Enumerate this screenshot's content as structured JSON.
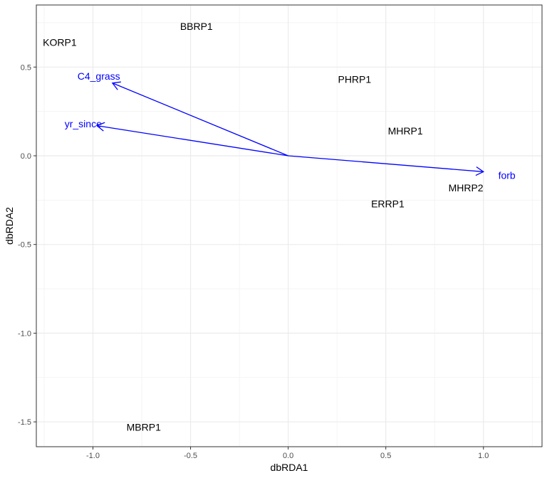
{
  "chart_data": {
    "type": "scatter",
    "title": "",
    "xlabel": "dbRDA1",
    "ylabel": "dbRDA2",
    "xlim": [
      -1.29,
      1.3
    ],
    "ylim": [
      -1.64,
      0.85
    ],
    "x_ticks": [
      -1.0,
      -0.5,
      0.0,
      0.5,
      1.0
    ],
    "x_tick_labels": [
      "-1.0",
      "-0.5",
      "0.0",
      "0.5",
      "1.0"
    ],
    "y_ticks": [
      0.5,
      0.0,
      -0.5,
      -1.0,
      -1.5
    ],
    "y_tick_labels": [
      "0.5",
      "0.0",
      "-0.5",
      "-1.0",
      "-1.5"
    ],
    "grid": true,
    "sites": [
      {
        "label": "BBRP1",
        "x": -0.47,
        "y": 0.73
      },
      {
        "label": "KORP1",
        "x": -1.17,
        "y": 0.64
      },
      {
        "label": "PHRP1",
        "x": 0.34,
        "y": 0.43
      },
      {
        "label": "MHRP1",
        "x": 0.6,
        "y": 0.14
      },
      {
        "label": "MHRP2",
        "x": 0.91,
        "y": -0.18
      },
      {
        "label": "ERRP1",
        "x": 0.51,
        "y": -0.27
      },
      {
        "label": "MBRP1",
        "x": -0.74,
        "y": -1.53
      }
    ],
    "arrows": [
      {
        "label": "C4_grass",
        "x": -0.9,
        "y": 0.41,
        "label_x": -0.97,
        "label_y": 0.45
      },
      {
        "label": "yr_since",
        "x": -0.98,
        "y": 0.17,
        "label_x": -1.05,
        "label_y": 0.18
      },
      {
        "label": "forb",
        "x": 1.0,
        "y": -0.09,
        "label_x": 1.12,
        "label_y": -0.11
      }
    ],
    "arrow_color": "#0000ff"
  }
}
